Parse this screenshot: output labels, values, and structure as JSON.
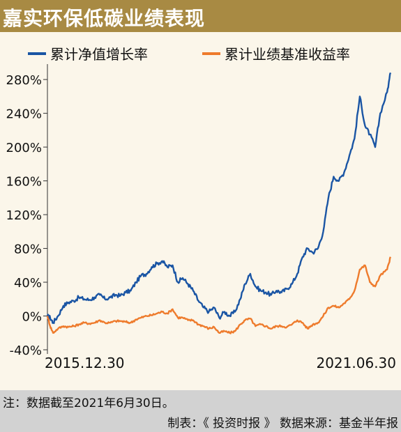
{
  "header": {
    "title": "嘉实环保低碳业绩表现"
  },
  "footer": {
    "note": "注：数据截至2021年6月30日。",
    "credit": "制表：《 投资时报 》 数据来源：基金半年报"
  },
  "colors": {
    "header_bg": "#a88a43",
    "nav_series": "#1a55a4",
    "benchmark_series": "#ee7b2c",
    "footer_bg": "#d2d2d2"
  },
  "chart_data": {
    "type": "line",
    "title": "",
    "xlabel": "",
    "ylabel": "",
    "x_range": [
      "2015-12-30",
      "2021-06-30"
    ],
    "x_tick_labels": [
      "2015.12.30",
      "2021.06.30"
    ],
    "ylim": [
      -40,
      290
    ],
    "y_ticks": [
      -40,
      0,
      40,
      80,
      120,
      160,
      200,
      240,
      280
    ],
    "y_tick_labels": [
      "-40%",
      "0%",
      "40%",
      "80%",
      "120%",
      "160%",
      "200%",
      "240%",
      "280%"
    ],
    "grid": false,
    "legend_position": "top",
    "series": [
      {
        "name": "累计净值增长率",
        "color": "#1a55a4",
        "points": [
          [
            "2015-12-30",
            0
          ],
          [
            "2016-01-15",
            -2
          ],
          [
            "2016-02-01",
            -8
          ],
          [
            "2016-03-01",
            0
          ],
          [
            "2016-04-01",
            12
          ],
          [
            "2016-05-01",
            16
          ],
          [
            "2016-06-01",
            18
          ],
          [
            "2016-07-01",
            22
          ],
          [
            "2016-08-01",
            20
          ],
          [
            "2016-09-01",
            19
          ],
          [
            "2016-10-01",
            22
          ],
          [
            "2016-11-01",
            25
          ],
          [
            "2016-12-01",
            20
          ],
          [
            "2017-01-01",
            22
          ],
          [
            "2017-02-01",
            25
          ],
          [
            "2017-03-01",
            24
          ],
          [
            "2017-04-01",
            28
          ],
          [
            "2017-05-01",
            30
          ],
          [
            "2017-06-01",
            40
          ],
          [
            "2017-07-01",
            48
          ],
          [
            "2017-08-01",
            50
          ],
          [
            "2017-09-01",
            58
          ],
          [
            "2017-10-01",
            62
          ],
          [
            "2017-11-01",
            65
          ],
          [
            "2017-12-01",
            58
          ],
          [
            "2018-01-01",
            60
          ],
          [
            "2018-02-01",
            40
          ],
          [
            "2018-03-01",
            45
          ],
          [
            "2018-04-01",
            38
          ],
          [
            "2018-05-01",
            30
          ],
          [
            "2018-06-01",
            18
          ],
          [
            "2018-07-01",
            10
          ],
          [
            "2018-08-01",
            5
          ],
          [
            "2018-09-01",
            10
          ],
          [
            "2018-10-01",
            -2
          ],
          [
            "2018-11-01",
            5
          ],
          [
            "2018-12-01",
            0
          ],
          [
            "2019-01-01",
            5
          ],
          [
            "2019-02-01",
            20
          ],
          [
            "2019-03-01",
            38
          ],
          [
            "2019-04-01",
            50
          ],
          [
            "2019-05-01",
            35
          ],
          [
            "2019-06-01",
            30
          ],
          [
            "2019-07-01",
            28
          ],
          [
            "2019-08-01",
            25
          ],
          [
            "2019-09-01",
            30
          ],
          [
            "2019-10-01",
            28
          ],
          [
            "2019-11-01",
            32
          ],
          [
            "2019-12-01",
            38
          ],
          [
            "2020-01-01",
            50
          ],
          [
            "2020-02-01",
            70
          ],
          [
            "2020-03-01",
            80
          ],
          [
            "2020-04-01",
            75
          ],
          [
            "2020-05-01",
            80
          ],
          [
            "2020-06-01",
            100
          ],
          [
            "2020-07-01",
            140
          ],
          [
            "2020-08-01",
            165
          ],
          [
            "2020-09-01",
            160
          ],
          [
            "2020-10-01",
            170
          ],
          [
            "2020-11-01",
            190
          ],
          [
            "2020-12-01",
            210
          ],
          [
            "2021-01-01",
            260
          ],
          [
            "2021-02-01",
            225
          ],
          [
            "2021-03-01",
            215
          ],
          [
            "2021-04-01",
            200
          ],
          [
            "2021-05-01",
            240
          ],
          [
            "2021-06-10",
            265
          ],
          [
            "2021-06-30",
            288
          ]
        ]
      },
      {
        "name": "累计业绩基准收益率",
        "color": "#ee7b2c",
        "points": [
          [
            "2015-12-30",
            0
          ],
          [
            "2016-01-15",
            -12
          ],
          [
            "2016-02-01",
            -20
          ],
          [
            "2016-03-01",
            -15
          ],
          [
            "2016-04-01",
            -12
          ],
          [
            "2016-05-01",
            -13
          ],
          [
            "2016-06-01",
            -12
          ],
          [
            "2016-07-01",
            -10
          ],
          [
            "2016-08-01",
            -8
          ],
          [
            "2016-09-01",
            -9
          ],
          [
            "2016-10-01",
            -8
          ],
          [
            "2016-11-01",
            -5
          ],
          [
            "2016-12-01",
            -8
          ],
          [
            "2017-01-01",
            -8
          ],
          [
            "2017-02-01",
            -6
          ],
          [
            "2017-03-01",
            -6
          ],
          [
            "2017-04-01",
            -7
          ],
          [
            "2017-05-01",
            -8
          ],
          [
            "2017-06-01",
            -4
          ],
          [
            "2017-07-01",
            -2
          ],
          [
            "2017-08-01",
            0
          ],
          [
            "2017-09-01",
            1
          ],
          [
            "2017-10-01",
            3
          ],
          [
            "2017-11-01",
            5
          ],
          [
            "2017-12-01",
            3
          ],
          [
            "2018-01-01",
            8
          ],
          [
            "2018-02-01",
            -2
          ],
          [
            "2018-03-01",
            -2
          ],
          [
            "2018-04-01",
            -5
          ],
          [
            "2018-05-01",
            -5
          ],
          [
            "2018-06-01",
            -10
          ],
          [
            "2018-07-01",
            -12
          ],
          [
            "2018-08-01",
            -15
          ],
          [
            "2018-09-01",
            -13
          ],
          [
            "2018-10-01",
            -20
          ],
          [
            "2018-11-01",
            -18
          ],
          [
            "2018-12-01",
            -20
          ],
          [
            "2019-01-01",
            -18
          ],
          [
            "2019-02-01",
            -10
          ],
          [
            "2019-03-01",
            -5
          ],
          [
            "2019-04-01",
            -3
          ],
          [
            "2019-05-01",
            -12
          ],
          [
            "2019-06-01",
            -10
          ],
          [
            "2019-07-01",
            -12
          ],
          [
            "2019-08-01",
            -15
          ],
          [
            "2019-09-01",
            -12
          ],
          [
            "2019-10-01",
            -12
          ],
          [
            "2019-11-01",
            -13
          ],
          [
            "2019-12-01",
            -10
          ],
          [
            "2020-01-01",
            -5
          ],
          [
            "2020-02-01",
            -8
          ],
          [
            "2020-03-01",
            -15
          ],
          [
            "2020-04-01",
            -10
          ],
          [
            "2020-05-01",
            -8
          ],
          [
            "2020-06-01",
            0
          ],
          [
            "2020-07-01",
            10
          ],
          [
            "2020-08-01",
            12
          ],
          [
            "2020-09-01",
            10
          ],
          [
            "2020-10-01",
            15
          ],
          [
            "2020-11-01",
            20
          ],
          [
            "2020-12-01",
            30
          ],
          [
            "2021-01-01",
            55
          ],
          [
            "2021-02-01",
            60
          ],
          [
            "2021-03-01",
            40
          ],
          [
            "2021-04-01",
            35
          ],
          [
            "2021-05-01",
            48
          ],
          [
            "2021-06-10",
            55
          ],
          [
            "2021-06-30",
            70
          ]
        ]
      }
    ]
  }
}
